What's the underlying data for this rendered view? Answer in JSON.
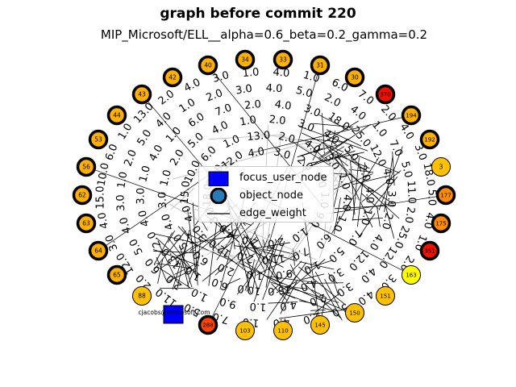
{
  "title": "graph before commit 220",
  "subtitle": "MIP_Microsoft/ELL__alpha=0.6_beta=0.2_gamma=0.2",
  "legend": {
    "focus": "focus_user_node",
    "object": "object_node",
    "edge": "edge_weight"
  },
  "focus_node": {
    "label": "cjacobs@microsoft.com",
    "color": "#0000ff"
  },
  "nodes": [
    {
      "label": "40",
      "color": "#ffb000",
      "border": "heavy"
    },
    {
      "label": "34",
      "color": "#ffb000",
      "border": "heavy"
    },
    {
      "label": "33",
      "color": "#ffb000",
      "border": "heavy"
    },
    {
      "label": "31",
      "color": "#ffb000",
      "border": "heavy"
    },
    {
      "label": "30",
      "color": "#ffb000",
      "border": "heavy"
    },
    {
      "label": "370",
      "color": "#ee1100",
      "border": "heavy"
    },
    {
      "label": "194",
      "color": "#ffb000",
      "border": "heavy"
    },
    {
      "label": "192",
      "color": "#ffb000",
      "border": "heavy"
    },
    {
      "label": "3",
      "color": "#ffc000",
      "border": "thin"
    },
    {
      "label": "177",
      "color": "#ff8c00",
      "border": "heavy"
    },
    {
      "label": "175",
      "color": "#ff8c00",
      "border": "heavy"
    },
    {
      "label": "351",
      "color": "#ee1100",
      "border": "heavy"
    },
    {
      "label": "163",
      "color": "#ffff00",
      "border": "thin"
    },
    {
      "label": "151",
      "color": "#ffc000",
      "border": "thin"
    },
    {
      "label": "150",
      "color": "#ffc000",
      "border": "thin"
    },
    {
      "label": "145",
      "color": "#ffc000",
      "border": "thin"
    },
    {
      "label": "110",
      "color": "#ffc000",
      "border": "thin"
    },
    {
      "label": "103",
      "color": "#ffc000",
      "border": "thin"
    },
    {
      "label": "288",
      "color": "#ff4400",
      "border": "heavy"
    },
    {
      "label": "88",
      "color": "#ffc000",
      "border": "thin"
    },
    {
      "label": "65",
      "color": "#ffb000",
      "border": "heavy"
    },
    {
      "label": "64",
      "color": "#ffb000",
      "border": "heavy"
    },
    {
      "label": "63",
      "color": "#ffb000",
      "border": "heavy"
    },
    {
      "label": "62",
      "color": "#ffb000",
      "border": "heavy"
    },
    {
      "label": "56",
      "color": "#ffb000",
      "border": "heavy"
    },
    {
      "label": "53",
      "color": "#ffb000",
      "border": "heavy"
    },
    {
      "label": "44",
      "color": "#ffb000",
      "border": "heavy"
    },
    {
      "label": "43",
      "color": "#ffb000",
      "border": "heavy"
    },
    {
      "label": "42",
      "color": "#ffb000",
      "border": "heavy"
    }
  ],
  "edge_labels": [
    {
      "text": "5.0"
    },
    {
      "text": "4.0"
    },
    {
      "text": "1.0"
    },
    {
      "text": "2.0"
    },
    {
      "text": "3.0"
    },
    {
      "text": "4.0"
    },
    {
      "text": "5.0"
    },
    {
      "text": "2.0"
    },
    {
      "text": "4.0"
    },
    {
      "text": "1.0"
    },
    {
      "text": "7.0"
    },
    {
      "text": "5.0"
    },
    {
      "text": "11.0"
    },
    {
      "text": "2.0"
    },
    {
      "text": "12.0"
    },
    {
      "text": "3.0"
    },
    {
      "text": "4.0"
    },
    {
      "text": "15.0"
    },
    {
      "text": "10.0"
    },
    {
      "text": "6.0"
    },
    {
      "text": "1.0"
    },
    {
      "text": "13.0"
    },
    {
      "text": "2.0"
    },
    {
      "text": "4.0"
    },
    {
      "text": "3.0"
    },
    {
      "text": "1.0"
    },
    {
      "text": "4.0"
    },
    {
      "text": "1.0"
    },
    {
      "text": "6.0"
    },
    {
      "text": "7.0"
    },
    {
      "text": "2.0"
    },
    {
      "text": "4.0"
    },
    {
      "text": "3.0"
    },
    {
      "text": "18.0"
    },
    {
      "text": "25.0"
    },
    {
      "text": "12.0"
    },
    {
      "text": "4.0"
    },
    {
      "text": "3.0"
    },
    {
      "text": "2.0"
    },
    {
      "text": "4.0"
    },
    {
      "text": "1.0"
    },
    {
      "text": "9.0"
    },
    {
      "text": "1.0"
    },
    {
      "text": "2.0"
    },
    {
      "text": "6.0"
    },
    {
      "text": "5.0"
    },
    {
      "text": "4.0"
    },
    {
      "text": "3.0"
    },
    {
      "text": "1.0"
    },
    {
      "text": "2.0"
    }
  ]
}
